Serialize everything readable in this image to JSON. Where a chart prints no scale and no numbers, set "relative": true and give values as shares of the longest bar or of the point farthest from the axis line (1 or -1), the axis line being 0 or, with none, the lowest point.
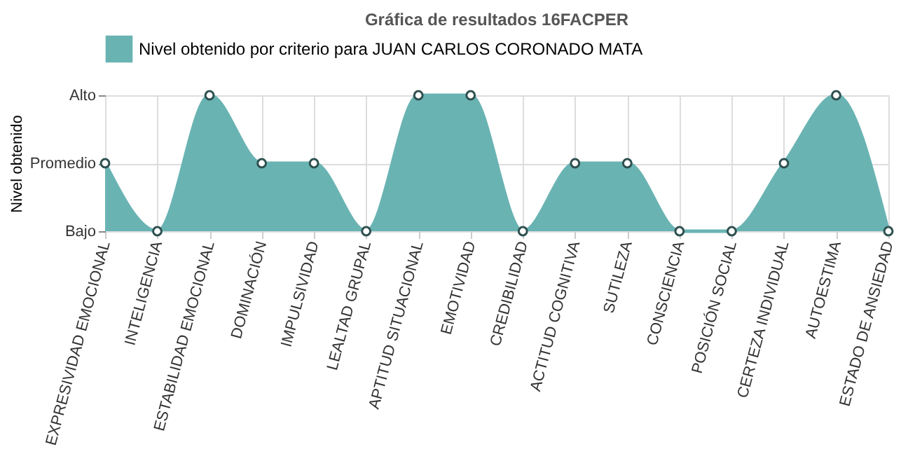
{
  "chart_data": {
    "type": "area",
    "title": "Gráfica de resultados 16FACPER",
    "ylabel": "Nivel obtenido",
    "categories": [
      "EXPRESIVIDAD EMOCIONAL",
      "INTELIGENCIA",
      "ESTABILIDAD EMOCIONAL",
      "DOMINACIÓN",
      "IMPULSIVIDAD",
      "LEALTAD GRUPAL",
      "APTITUD SITUACIONAL",
      "EMOTIVIDAD",
      "CREDIBILIDAD",
      "ACTITUD COGNITIVA",
      "SUTILEZA",
      "CONSCIENCIA",
      "POSICIÓN SOCIAL",
      "CERTEZA INDIVIDUAL",
      "AUTOESTIMA",
      "ESTADO DE ANSIEDAD"
    ],
    "relative": true,
    "annotations": [
      "Alto",
      "Promedio",
      "Bajo"
    ],
    "series": [
      {
        "name": "Nivel obtenido por criterio para JUAN CARLOS CORONADO MATA",
        "color": "#6ab3b3",
        "values": [
          0.5,
          0,
          1,
          0.5,
          0.5,
          0,
          1,
          1,
          0,
          0.5,
          0.5,
          0,
          0,
          0.5,
          1,
          0
        ]
      }
    ],
    "grid": true,
    "legend": "top",
    "marker": "circle"
  }
}
